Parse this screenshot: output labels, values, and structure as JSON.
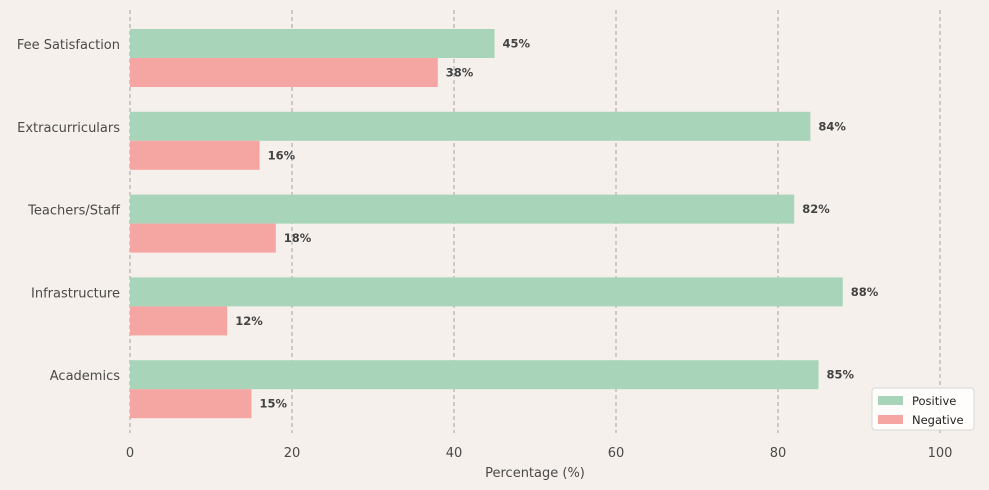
{
  "chart_data": {
    "type": "bar",
    "orientation": "horizontal",
    "title": "",
    "xlabel": "Percentage (%)",
    "ylabel": "",
    "xlim": [
      0,
      100
    ],
    "xticks": [
      0,
      20,
      40,
      60,
      80,
      100
    ],
    "grid": true,
    "legend_position": "bottom-right",
    "categories": [
      "Fee Satisfaction",
      "Extracurriculars",
      "Teachers/Staff",
      "Infrastructure",
      "Academics"
    ],
    "series": [
      {
        "name": "Positive",
        "color": "#a8d5b9",
        "values": [
          45,
          84,
          82,
          88,
          85
        ]
      },
      {
        "name": "Negative",
        "color": "#f6a6a2",
        "values": [
          38,
          16,
          18,
          12,
          15
        ]
      }
    ],
    "value_suffix": "%",
    "background": "#f5f0ec"
  }
}
